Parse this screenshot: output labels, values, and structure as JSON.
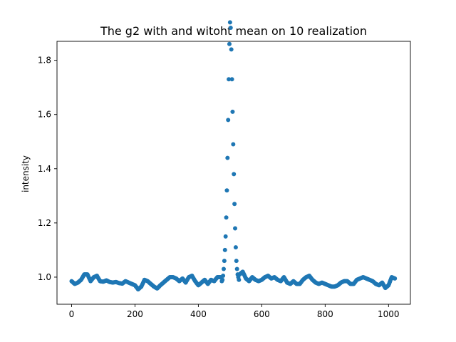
{
  "chart_data": {
    "type": "scatter",
    "title": "The g2 with and witoht mean on 10 realization",
    "xlabel": "",
    "ylabel": "intensity",
    "xlim": [
      -46,
      1069
    ],
    "ylim": [
      0.9,
      1.87
    ],
    "xticks": [
      {
        "value": 0,
        "label": "0"
      },
      {
        "value": 200,
        "label": "200"
      },
      {
        "value": 400,
        "label": "400"
      },
      {
        "value": 600,
        "label": "600"
      },
      {
        "value": 800,
        "label": "800"
      },
      {
        "value": 1000,
        "label": "1000"
      }
    ],
    "yticks": [
      {
        "value": 1.0,
        "label": "1.0"
      },
      {
        "value": 1.2,
        "label": "1.2"
      },
      {
        "value": 1.4,
        "label": "1.4"
      },
      {
        "value": 1.6,
        "label": "1.6"
      },
      {
        "value": 1.8,
        "label": "1.8"
      }
    ],
    "grid": false,
    "legend": "none",
    "marker_color": "#1f77b4",
    "baseline": {
      "x": [
        0,
        10,
        20,
        30,
        40,
        50,
        60,
        70,
        80,
        90,
        100,
        110,
        120,
        130,
        140,
        150,
        160,
        170,
        180,
        190,
        200,
        210,
        220,
        230,
        240,
        250,
        260,
        270,
        280,
        290,
        300,
        310,
        320,
        330,
        340,
        350,
        360,
        370,
        380,
        390,
        400,
        410,
        420,
        430,
        440,
        450,
        460,
        470
      ],
      "y": [
        0.985,
        0.975,
        0.98,
        0.99,
        1.01,
        1.01,
        0.985,
        1.0,
        1.005,
        0.985,
        0.983,
        0.988,
        0.982,
        0.98,
        0.982,
        0.978,
        0.976,
        0.985,
        0.98,
        0.975,
        0.97,
        0.955,
        0.965,
        0.99,
        0.985,
        0.975,
        0.965,
        0.958,
        0.97,
        0.98,
        0.99,
        1.0,
        1.0,
        0.995,
        0.985,
        0.995,
        0.98,
        1.0,
        1.005,
        0.985,
        0.97,
        0.98,
        0.99,
        0.975,
        0.99,
        0.985,
        1.0,
        1.0
      ]
    },
    "peak": {
      "x": [
        474,
        476,
        478,
        480,
        482,
        484,
        486,
        488,
        490,
        492,
        494,
        496,
        498,
        500,
        502,
        504,
        506,
        508,
        510,
        512,
        514,
        516,
        518,
        520,
        522,
        524,
        526,
        528
      ],
      "y": [
        0.985,
        0.99,
        1.005,
        1.03,
        1.06,
        1.1,
        1.15,
        1.22,
        1.32,
        1.44,
        1.58,
        1.73,
        1.86,
        1.94,
        1.92,
        1.84,
        1.73,
        1.61,
        1.49,
        1.38,
        1.27,
        1.18,
        1.11,
        1.06,
        1.03,
        1.01,
        1.0,
        0.99
      ]
    },
    "tail": {
      "x": [
        530,
        540,
        550,
        560,
        570,
        580,
        590,
        600,
        610,
        620,
        630,
        640,
        650,
        660,
        670,
        680,
        690,
        700,
        710,
        720,
        730,
        740,
        750,
        760,
        770,
        780,
        790,
        800,
        810,
        820,
        830,
        840,
        850,
        860,
        870,
        880,
        890,
        900,
        910,
        920,
        930,
        940,
        950,
        960,
        970,
        980,
        990,
        1000,
        1010,
        1020
      ],
      "y": [
        1.01,
        1.02,
        0.995,
        0.985,
        1.0,
        0.99,
        0.985,
        0.99,
        1.0,
        1.005,
        0.995,
        1.0,
        0.99,
        0.985,
        1.0,
        0.98,
        0.975,
        0.985,
        0.975,
        0.975,
        0.99,
        1.0,
        1.005,
        0.99,
        0.98,
        0.975,
        0.98,
        0.975,
        0.97,
        0.965,
        0.965,
        0.97,
        0.98,
        0.985,
        0.985,
        0.975,
        0.975,
        0.99,
        0.995,
        1.0,
        0.995,
        0.99,
        0.985,
        0.975,
        0.97,
        0.98,
        0.96,
        0.97,
        1.0,
        0.995
      ]
    }
  }
}
